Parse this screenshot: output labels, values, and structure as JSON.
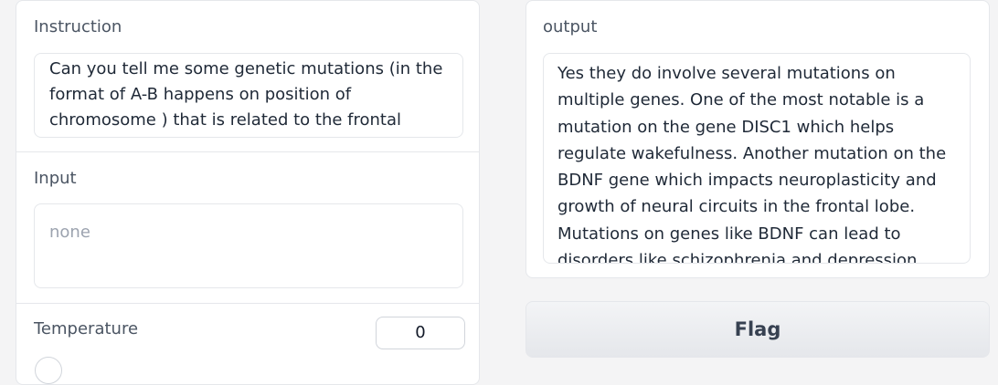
{
  "instruction": {
    "label": "Instruction",
    "value": "Can you tell me some genetic mutations (in the format of A-B happens on position of chromosome ) that is related to the frontal lobe?"
  },
  "input": {
    "label": "Input",
    "placeholder": "none"
  },
  "temperature": {
    "label": "Temperature",
    "value": "0"
  },
  "output": {
    "label": "output",
    "value": "Yes they do involve several mutations on multiple genes. One of the most notable is a mutation on the gene DISC1 which helps regulate wakefulness. Another mutation on the BDNF gene which impacts neuroplasticity and growth of neural circuits in the frontal lobe. Mutations on genes like BDNF can lead to disorders like schizophrenia and depression disrupting functioning of the frontal lobe."
  },
  "flag_button": {
    "label": "Flag"
  }
}
